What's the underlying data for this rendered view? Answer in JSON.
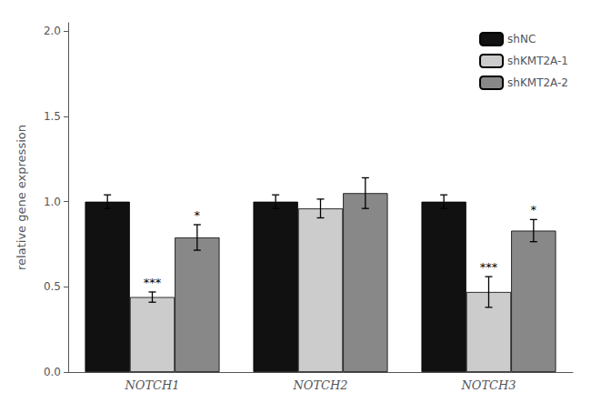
{
  "chart_data": {
    "type": "bar",
    "categories": [
      "NOTCH1",
      "NOTCH2",
      "NOTCH3"
    ],
    "series": [
      {
        "name": "shNC",
        "color": "#111111",
        "values": [
          1.0,
          1.0,
          1.0
        ],
        "errors": [
          0.04,
          0.04,
          0.04
        ],
        "annotations": [
          null,
          null,
          null
        ]
      },
      {
        "name": "shKMT2A-1",
        "color": "#cccccc",
        "values": [
          0.44,
          0.96,
          0.47
        ],
        "errors": [
          0.03,
          0.055,
          0.09
        ],
        "annotations": [
          "***",
          null,
          "***"
        ]
      },
      {
        "name": "shKMT2A-2",
        "color": "#888888",
        "values": [
          0.79,
          1.05,
          0.83
        ],
        "errors": [
          0.075,
          0.09,
          0.065
        ],
        "annotations": [
          "*",
          null,
          "*"
        ]
      }
    ],
    "ylabel": "relative gene expression",
    "ylim": [
      0.0,
      2.05
    ],
    "yticks": [
      {
        "value": 0.0,
        "label": "0.0"
      },
      0.5,
      {
        "value": 1.0,
        "label": "1.0"
      },
      1.5,
      {
        "value": 2.0,
        "label": "2.0"
      }
    ],
    "grid": false,
    "legend": "upper right"
  }
}
